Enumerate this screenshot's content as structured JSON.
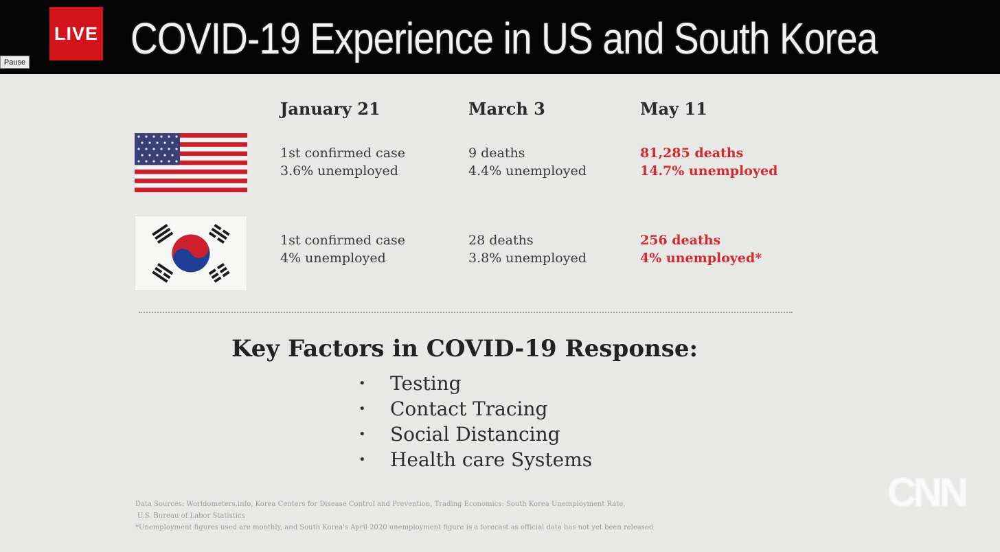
{
  "broadcast": {
    "live_label": "LIVE",
    "headline": "COVID-19 Experience in US and South Korea",
    "pause_label": "Pause",
    "network_logo": "CNN"
  },
  "table": {
    "columns": [
      "January 21",
      "March 3",
      "May 11"
    ],
    "rows": [
      {
        "country_flag": "us-flag-icon",
        "cells": [
          {
            "line1": "1st confirmed case",
            "line2": "3.6% unemployed",
            "highlight": false
          },
          {
            "line1": "9 deaths",
            "line2": "4.4% unemployed",
            "highlight": false
          },
          {
            "line1": "81,285 deaths",
            "line2": "14.7% unemployed",
            "highlight": true
          }
        ]
      },
      {
        "country_flag": "south-korea-flag-icon",
        "cells": [
          {
            "line1": "1st confirmed case",
            "line2": "4% unemployed",
            "highlight": false
          },
          {
            "line1": "28 deaths",
            "line2": "3.8% unemployed",
            "highlight": false
          },
          {
            "line1": "256 deaths",
            "line2": "4% unemployed*",
            "highlight": true
          }
        ]
      }
    ]
  },
  "key_factors": {
    "title": "Key Factors in COVID-19 Response:",
    "items": [
      "Testing",
      "Contact Tracing",
      "Social Distancing",
      "Health care Systems"
    ]
  },
  "sources": {
    "line1": "Data Sources: Worldometers.info, Korea Centers for Disease Control and Prevention, Trading Economics: South Korea Unemployment Rate,",
    "line2": "U.S. Bureau of Labor Statistics",
    "line3": "*Unemployment figures used are monthly, and South Korea's April 2020 unemployment figure is a forecast as official data has not yet been released"
  },
  "colors": {
    "live_red": "#d2141b",
    "highlight_red": "#d42a2f",
    "topbar": "#050505",
    "slide_bg": "#e8e9e7"
  }
}
